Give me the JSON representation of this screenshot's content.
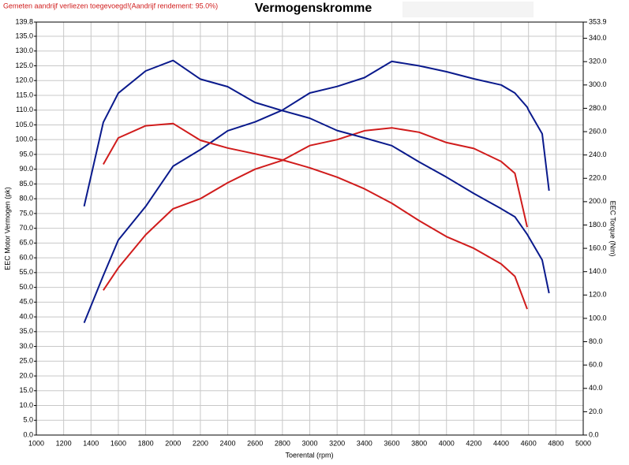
{
  "chart_data": {
    "type": "line",
    "title": "Vermogenskromme",
    "note": "Gemeten aandrijf verliezen toegevoegd!(Aandrijf rendement: 95.0%)",
    "xlabel": "Toerental (rpm)",
    "ylabel": "EEC Motor Vermogen (pk)",
    "y2label": "EEC Torque (Nm)",
    "grid": true,
    "x": [
      1350,
      1490,
      1600,
      1800,
      2000,
      2200,
      2400,
      2600,
      2800,
      3000,
      3200,
      3400,
      3600,
      3800,
      4000,
      4200,
      4400,
      4500,
      4590,
      4600,
      4700,
      4750
    ],
    "series": [
      {
        "color": "#0a1a8c",
        "axis": "y",
        "values": [
          38,
          54,
          66,
          77.4,
          91,
          96.6,
          103,
          106,
          110,
          115.8,
          118,
          121,
          126.5,
          125,
          123,
          120.6,
          118.5,
          115.8,
          111,
          110,
          102,
          82.7
        ]
      },
      {
        "color": "#d01c1c",
        "axis": "y",
        "values": [
          null,
          49,
          56.6,
          67.8,
          76.6,
          80,
          85.4,
          90,
          93,
          98,
          100,
          103,
          104,
          102.5,
          99,
          97,
          92.6,
          88.6,
          70.4,
          null,
          null,
          null
        ]
      },
      {
        "color": "#0a1a8c",
        "axis": "y2",
        "values": [
          196,
          268,
          293,
          312,
          321,
          305,
          298.5,
          285,
          278,
          271.5,
          261,
          254.6,
          248,
          234,
          221,
          207,
          194,
          187,
          172,
          170,
          150,
          121.6
        ]
      },
      {
        "color": "#d01c1c",
        "axis": "y2",
        "values": [
          null,
          232,
          254.6,
          265,
          267,
          252.6,
          246,
          241,
          235.7,
          229,
          221,
          211,
          198.6,
          183.7,
          170,
          160,
          146.6,
          136,
          108,
          null,
          null,
          null
        ]
      }
    ],
    "xlim": [
      1000,
      5000
    ],
    "xticks": [
      1000,
      1200,
      1400,
      1600,
      1800,
      2000,
      2200,
      2400,
      2600,
      2800,
      3000,
      3200,
      3400,
      3600,
      3800,
      4000,
      4200,
      4400,
      4600,
      4800,
      5000
    ],
    "ylim": [
      0,
      139.8
    ],
    "yticks": [
      {
        "value": 0,
        "label": "0.0"
      },
      {
        "value": 5,
        "label": "5.0"
      },
      {
        "value": 10,
        "label": "10.0"
      },
      {
        "value": 15,
        "label": "15.0"
      },
      {
        "value": 20,
        "label": "20.0"
      },
      {
        "value": 25,
        "label": "25.0"
      },
      {
        "value": 30,
        "label": "30.0"
      },
      {
        "value": 35,
        "label": "35.0"
      },
      {
        "value": 40,
        "label": "40.0"
      },
      {
        "value": 45,
        "label": "45.0"
      },
      {
        "value": 50,
        "label": "50.0"
      },
      {
        "value": 55,
        "label": "55.0"
      },
      {
        "value": 60,
        "label": "60.0"
      },
      {
        "value": 65,
        "label": "65.0"
      },
      {
        "value": 70,
        "label": "70.0"
      },
      {
        "value": 75,
        "label": "75.0"
      },
      {
        "value": 80,
        "label": "80.0"
      },
      {
        "value": 85,
        "label": "85.0"
      },
      {
        "value": 90,
        "label": "90.0"
      },
      {
        "value": 95,
        "label": "95.0"
      },
      {
        "value": 100,
        "label": "100.0"
      },
      {
        "value": 105,
        "label": "105.0"
      },
      {
        "value": 110,
        "label": "110.0"
      },
      {
        "value": 115,
        "label": "115.0"
      },
      {
        "value": 120,
        "label": "120.0"
      },
      {
        "value": 125,
        "label": "125.0"
      },
      {
        "value": 130,
        "label": "130.0"
      },
      {
        "value": 135,
        "label": "135.0"
      },
      139.8
    ],
    "y2lim": [
      0,
      353.9
    ],
    "y2ticks": [
      {
        "value": 0,
        "label": "0.0"
      },
      {
        "value": 20,
        "label": "20.0"
      },
      {
        "value": 40,
        "label": "40.0"
      },
      {
        "value": 60,
        "label": "60.0"
      },
      {
        "value": 80,
        "label": "80.0"
      },
      {
        "value": 100,
        "label": "100.0"
      },
      {
        "value": 120,
        "label": "120.0"
      },
      {
        "value": 140,
        "label": "140.0"
      },
      {
        "value": 160,
        "label": "160.0"
      },
      {
        "value": 180,
        "label": "180.0"
      },
      {
        "value": 200,
        "label": "200.0"
      },
      {
        "value": 220,
        "label": "220.0"
      },
      {
        "value": 240,
        "label": "240.0"
      },
      {
        "value": 260,
        "label": "260.0"
      },
      {
        "value": 280,
        "label": "280.0"
      },
      {
        "value": 300,
        "label": "300.0"
      },
      {
        "value": 320,
        "label": "320.0"
      },
      {
        "value": 340,
        "label": "340.0"
      },
      353.9
    ]
  }
}
